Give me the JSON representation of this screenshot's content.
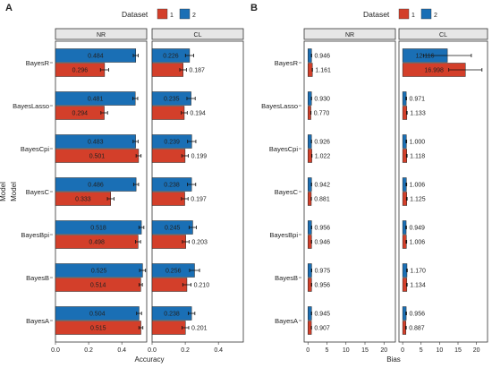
{
  "colors": {
    "dataset_1": "#d33f2a",
    "dataset_2": "#1a6fb5",
    "strip_bg": "#e6e6e6"
  },
  "chart_data": [
    {
      "panel_letter": "A",
      "type": "bar",
      "orientation": "horizontal",
      "legend_title": "Dataset",
      "legend_items": [
        "1",
        "2"
      ],
      "legend_placement": "top",
      "xlabel": "Accuracy",
      "ylabel": "Model",
      "xlim": [
        0,
        0.55
      ],
      "xticks": [
        0.0,
        0.2,
        0.4
      ],
      "xtick_labels": [
        "0.0",
        "0.2",
        "0.4"
      ],
      "grid": false,
      "categories": [
        "BayesR",
        "BayesLasso",
        "BayesCpi",
        "BayesC",
        "BayesBpi",
        "BayesB",
        "BayesA"
      ],
      "facets": [
        {
          "name": "NR",
          "series": [
            {
              "name": "2",
              "values": [
                0.484,
                0.481,
                0.483,
                0.486,
                0.518,
                0.525,
                0.504
              ],
              "errors": [
                0.015,
                0.015,
                0.015,
                0.015,
                0.015,
                0.018,
                0.015
              ]
            },
            {
              "name": "1",
              "values": [
                0.296,
                0.294,
                0.501,
                0.333,
                0.498,
                0.514,
                0.515
              ],
              "errors": [
                0.025,
                0.02,
                0.015,
                0.02,
                0.015,
                0.01,
                0.012
              ]
            }
          ]
        },
        {
          "name": "CL",
          "series": [
            {
              "name": "2",
              "values": [
                0.226,
                0.235,
                0.239,
                0.238,
                0.245,
                0.256,
                0.238
              ],
              "errors": [
                0.025,
                0.025,
                0.025,
                0.025,
                0.022,
                0.03,
                0.02
              ]
            },
            {
              "name": "1",
              "values": [
                0.187,
                0.194,
                0.199,
                0.197,
                0.203,
                0.21,
                0.201
              ],
              "errors": [
                0.02,
                0.018,
                0.02,
                0.02,
                0.02,
                0.025,
                0.02
              ]
            }
          ]
        }
      ]
    },
    {
      "panel_letter": "B",
      "type": "bar",
      "orientation": "horizontal",
      "legend_title": "Dataset",
      "legend_items": [
        "1",
        "2"
      ],
      "legend_placement": "top",
      "xlabel": "Bias",
      "ylabel": "Model",
      "xlim": [
        -1,
        23
      ],
      "xticks": [
        0,
        5,
        10,
        15,
        20
      ],
      "xtick_labels": [
        "0",
        "5",
        "10",
        "15",
        "20"
      ],
      "grid": false,
      "categories": [
        "BayesR",
        "BayesLasso",
        "BayesCpi",
        "BayesC",
        "BayesBpi",
        "BayesB",
        "BayesA"
      ],
      "facets": [
        {
          "name": "NR",
          "series": [
            {
              "name": "2",
              "values": [
                0.946,
                0.93,
                0.926,
                0.942,
                0.956,
                0.975,
                0.945
              ],
              "errors": [
                0.05,
                0.05,
                0.05,
                0.05,
                0.05,
                0.05,
                0.05
              ]
            },
            {
              "name": "1",
              "values": [
                1.161,
                0.77,
                1.022,
                0.881,
                0.946,
                0.956,
                0.907
              ],
              "errors": [
                0.05,
                0.05,
                0.05,
                0.05,
                0.05,
                0.05,
                0.05
              ]
            }
          ]
        },
        {
          "name": "CL",
          "series": [
            {
              "name": "2",
              "values": [
                12.116,
                0.971,
                1.0,
                1.006,
                0.949,
                1.17,
                0.956
              ],
              "errors": [
                6.5,
                0.1,
                0.1,
                0.1,
                0.1,
                0.1,
                0.1
              ]
            },
            {
              "name": "1",
              "values": [
                16.998,
                1.133,
                1.118,
                1.125,
                1.006,
                1.134,
                0.887
              ],
              "errors": [
                4.5,
                0.1,
                0.1,
                0.1,
                0.1,
                0.1,
                0.1
              ]
            }
          ]
        }
      ]
    }
  ]
}
